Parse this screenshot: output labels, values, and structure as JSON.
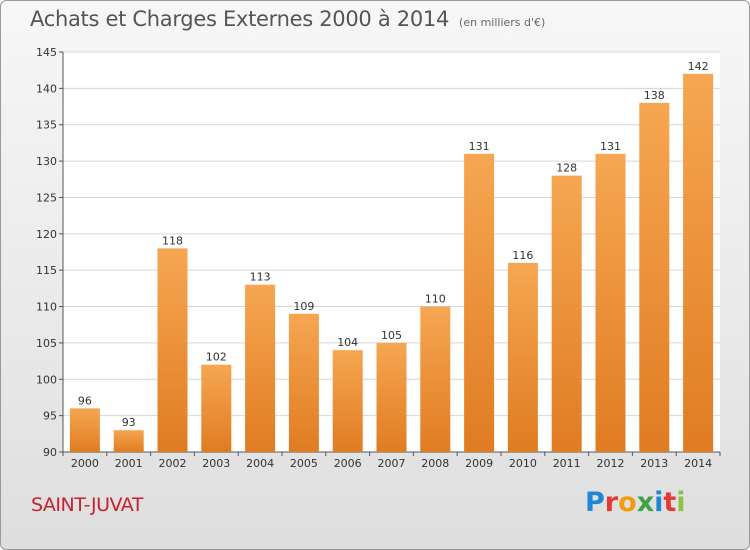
{
  "header": {
    "title": "Achats et Charges Externes 2000 à 2014",
    "subtitle": "(en milliers d'€)"
  },
  "footer": {
    "commune": "SAINT-JUVAT",
    "logo": [
      "P",
      "r",
      "o",
      "x",
      "i",
      "t",
      "i"
    ]
  },
  "colors": {
    "bar_light": "#f6a652",
    "bar_dark": "#e07c22",
    "commune": "#c8202f",
    "logo": [
      "#1e88d6",
      "#e53935",
      "#f39c12",
      "#43a047",
      "#1e88d6",
      "#e53935",
      "#8bc34a"
    ]
  },
  "chart_data": {
    "type": "bar",
    "title": "Achats et Charges Externes 2000 à 2014",
    "categories": [
      "2000",
      "2001",
      "2002",
      "2003",
      "2004",
      "2005",
      "2006",
      "2007",
      "2008",
      "2009",
      "2010",
      "2011",
      "2012",
      "2013",
      "2014"
    ],
    "values": [
      96,
      93,
      118,
      102,
      113,
      109,
      104,
      105,
      110,
      131,
      116,
      128,
      131,
      138,
      142
    ],
    "ylim": [
      90,
      145
    ],
    "yticks": [
      90,
      95,
      100,
      105,
      110,
      115,
      120,
      125,
      130,
      135,
      140,
      145
    ],
    "grid": true,
    "xlabel": "",
    "ylabel": ""
  }
}
